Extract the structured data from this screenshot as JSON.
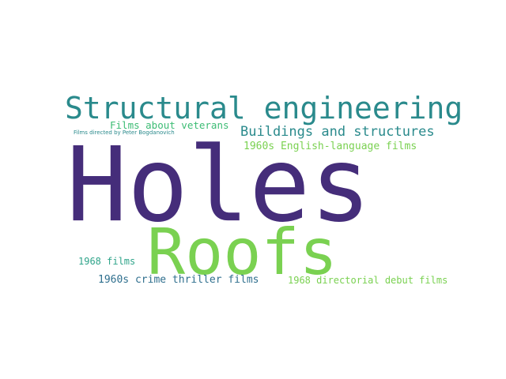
{
  "words": {
    "holes": {
      "text": "Holes",
      "color": "#452d7a"
    },
    "roofs": {
      "text": "Roofs",
      "color": "#7ad151"
    },
    "structural": {
      "text": "Structural engineering",
      "color": "#2a8a8c"
    },
    "buildings": {
      "text": "Buildings and structures",
      "color": "#2a8a8c"
    },
    "english": {
      "text": "1960s English-language films",
      "color": "#7ad151"
    },
    "veterans": {
      "text": "Films about veterans",
      "color": "#3cbc74"
    },
    "bogdanovich": {
      "text": "Films directed by Peter Bogdanovich",
      "color": "#2a8a8c"
    },
    "films1968": {
      "text": "1968 films",
      "color": "#2fa48a"
    },
    "crime": {
      "text": "1960s crime thriller films",
      "color": "#2f6f8e"
    },
    "debut": {
      "text": "1968 directorial debut films",
      "color": "#7ad151"
    }
  }
}
